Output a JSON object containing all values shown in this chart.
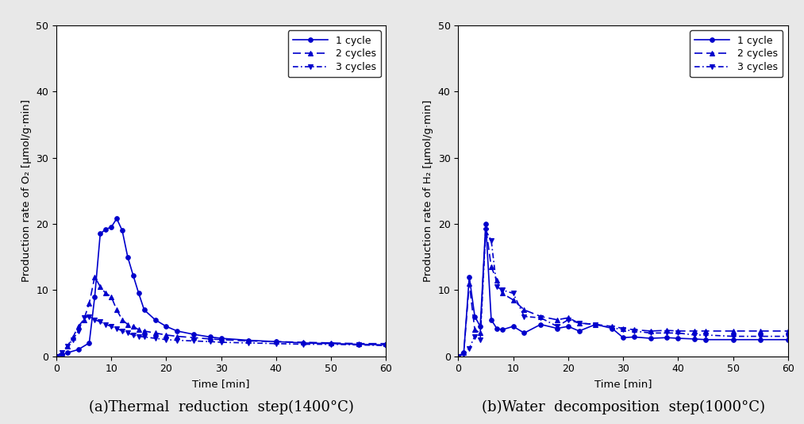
{
  "color": "#0000CC",
  "fig_bg": "#e8e8e8",
  "plot_bg": "#ffffff",
  "left_plot": {
    "ylabel": "Production rate of O₂ [μmol/g·min]",
    "xlabel": "Time [min]",
    "ylim": [
      0,
      50
    ],
    "xlim": [
      0,
      60
    ],
    "yticks": [
      0,
      10,
      20,
      30,
      40,
      50
    ],
    "xticks": [
      0,
      10,
      20,
      30,
      40,
      50,
      60
    ],
    "cycle1_x": [
      0,
      1,
      2,
      4,
      6,
      7,
      8,
      9,
      10,
      11,
      12,
      13,
      14,
      15,
      16,
      18,
      20,
      22,
      25,
      28,
      30,
      35,
      40,
      45,
      50,
      55,
      60
    ],
    "cycle1_y": [
      0,
      0.2,
      0.5,
      1.0,
      2.0,
      9.0,
      18.5,
      19.2,
      19.5,
      20.8,
      19.0,
      15.0,
      12.2,
      9.5,
      7.0,
      5.5,
      4.5,
      3.8,
      3.3,
      2.9,
      2.7,
      2.4,
      2.2,
      2.0,
      1.9,
      1.8,
      1.7
    ],
    "cycle2_x": [
      0,
      1,
      2,
      3,
      4,
      5,
      6,
      7,
      8,
      9,
      10,
      11,
      12,
      13,
      14,
      15,
      16,
      18,
      20,
      22,
      25,
      28,
      30,
      35,
      40,
      45,
      50,
      55,
      60
    ],
    "cycle2_y": [
      0,
      0.5,
      1.5,
      2.8,
      4.5,
      5.5,
      8.0,
      12.0,
      10.5,
      9.5,
      9.0,
      7.0,
      5.5,
      4.8,
      4.5,
      4.0,
      3.8,
      3.5,
      3.2,
      3.0,
      2.8,
      2.6,
      2.5,
      2.3,
      2.2,
      2.1,
      2.0,
      1.9,
      1.9
    ],
    "cycle3_x": [
      0,
      1,
      2,
      3,
      4,
      5,
      6,
      7,
      8,
      9,
      10,
      11,
      12,
      13,
      14,
      15,
      16,
      18,
      20,
      22,
      25,
      28,
      30,
      35,
      40,
      45,
      50,
      55,
      60
    ],
    "cycle3_y": [
      0,
      0.5,
      1.5,
      2.5,
      3.8,
      5.8,
      6.0,
      5.5,
      5.2,
      4.8,
      4.5,
      4.2,
      3.8,
      3.5,
      3.2,
      3.0,
      2.9,
      2.7,
      2.5,
      2.4,
      2.3,
      2.2,
      2.1,
      2.0,
      1.9,
      1.8,
      1.8,
      1.7,
      1.6
    ]
  },
  "right_plot": {
    "ylabel": "Production rate of H₂ [μmol/g·min]",
    "xlabel": "Time [min]",
    "ylim": [
      0,
      50
    ],
    "xlim": [
      0,
      60
    ],
    "yticks": [
      0,
      10,
      20,
      30,
      40,
      50
    ],
    "xticks": [
      0,
      10,
      20,
      30,
      40,
      50,
      60
    ],
    "cycle1_x": [
      0,
      1,
      2,
      3,
      4,
      5,
      6,
      7,
      8,
      10,
      12,
      15,
      18,
      20,
      22,
      25,
      28,
      30,
      32,
      35,
      38,
      40,
      43,
      45,
      50,
      55,
      60
    ],
    "cycle1_y": [
      0,
      0.5,
      12.0,
      6.0,
      4.5,
      20.0,
      5.5,
      4.2,
      4.0,
      4.5,
      3.5,
      4.8,
      4.2,
      4.5,
      3.8,
      4.8,
      4.2,
      2.8,
      2.9,
      2.7,
      2.8,
      2.7,
      2.6,
      2.5,
      2.5,
      2.5,
      2.5
    ],
    "cycle2_x": [
      0,
      1,
      2,
      3,
      4,
      5,
      6,
      7,
      8,
      10,
      12,
      15,
      18,
      20,
      22,
      25,
      28,
      30,
      32,
      35,
      38,
      40,
      43,
      45,
      50,
      55,
      60
    ],
    "cycle2_y": [
      0,
      0.5,
      11.0,
      4.0,
      3.5,
      19.5,
      13.5,
      11.5,
      9.5,
      8.5,
      7.0,
      6.0,
      5.5,
      5.8,
      5.0,
      4.8,
      4.5,
      4.2,
      4.0,
      3.8,
      3.9,
      3.8,
      3.8,
      3.8,
      3.8,
      3.8,
      3.8
    ],
    "cycle3_x": [
      0,
      1,
      2,
      3,
      4,
      5,
      6,
      7,
      8,
      10,
      12,
      15,
      18,
      20,
      22,
      25,
      28,
      30,
      32,
      35,
      38,
      40,
      43,
      45,
      50,
      55,
      60
    ],
    "cycle3_y": [
      0,
      0.3,
      1.2,
      3.0,
      2.5,
      19.0,
      17.5,
      10.5,
      10.0,
      9.5,
      6.0,
      5.8,
      4.5,
      5.5,
      5.0,
      4.8,
      4.3,
      4.0,
      3.8,
      3.5,
      3.5,
      3.5,
      3.2,
      3.2,
      3.0,
      3.0,
      3.0
    ]
  },
  "legend_labels": [
    "1 cycle",
    "2 cycles",
    "3 cycles"
  ],
  "line_styles": [
    "-",
    "--",
    "--"
  ],
  "line_dash_patterns": [
    null,
    [
      6,
      3
    ],
    [
      4,
      2,
      1,
      2
    ]
  ],
  "markers": [
    "o",
    "^",
    "v"
  ],
  "marker_size": 4,
  "line_width": 1.2,
  "font_size_label": 9.5,
  "font_size_tick": 9,
  "font_size_legend": 9,
  "font_size_caption": 13,
  "caption_left": "(a)Thermal  reduction  step(1400°C)",
  "caption_right": "(b)Water  decomposition  step(1000°C)"
}
